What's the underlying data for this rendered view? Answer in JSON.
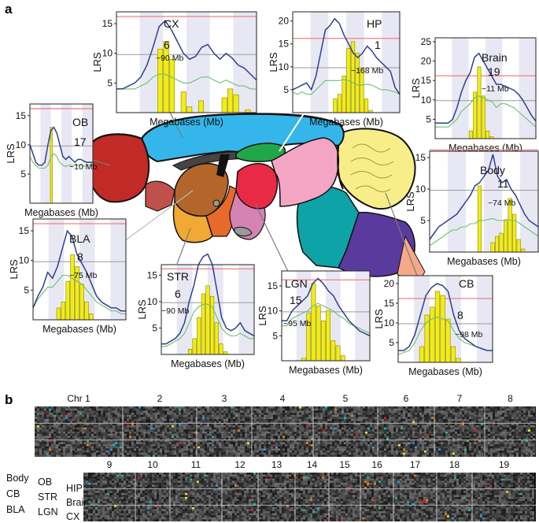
{
  "figure": {
    "panel_a_label": "a",
    "panel_b_label": "b",
    "xlabel": "Megabases (Mb)",
    "ylabel": "LRS",
    "sig_color": "#f08080",
    "sug_color": "#9a9a9a",
    "lrs_color": "#2e3f8f",
    "add_color": "#6cc06c",
    "hist_color": "#f2ec1a"
  },
  "chart_data": [
    {
      "type": "line",
      "name": "CX",
      "chr": "6",
      "peak": "~90 Mb",
      "yticks": [
        "5",
        "10",
        "15"
      ],
      "ylim": [
        0,
        17
      ],
      "sig": 16.2,
      "sug": 9.8,
      "lrs": [
        4,
        4,
        4.5,
        5,
        6,
        8,
        11,
        14.5,
        15.5,
        14,
        12,
        10,
        9,
        9.5,
        11,
        11.5,
        10,
        9,
        10,
        9.2,
        8,
        7.5,
        6.5,
        5.5
      ],
      "add": [
        4,
        4,
        4,
        4,
        4.5,
        5,
        6,
        6.5,
        6.5,
        6,
        5.5,
        5,
        5,
        5.5,
        6,
        6,
        5.5,
        5,
        5.5,
        5,
        4.5,
        4.5,
        4,
        4
      ],
      "hist": [
        0,
        0,
        0,
        0,
        0,
        0,
        0,
        10.7,
        12,
        9,
        0,
        3.5,
        1,
        0,
        2,
        0,
        0,
        0,
        2.5,
        4,
        3,
        0,
        0.5,
        0
      ]
    },
    {
      "type": "line",
      "name": "HP",
      "chr": "1",
      "peak": "~168 Mb",
      "yticks": [
        "5",
        "10",
        "15",
        "20"
      ],
      "ylim": [
        0,
        22
      ],
      "sig": 16.2,
      "sug": 9.8,
      "lrs": [
        5,
        5.5,
        6,
        6.5,
        5,
        8,
        13,
        18,
        19,
        20.5,
        19.5,
        17,
        15,
        13,
        12,
        13,
        14.5,
        13.5,
        12,
        11,
        10,
        9,
        5.5,
        4
      ],
      "add": [
        4.5,
        4,
        4.5,
        4,
        4,
        5,
        6,
        7,
        7,
        7,
        7,
        7.2,
        7,
        6.5,
        6,
        6,
        6.2,
        6,
        5.5,
        5,
        5,
        4.8,
        4.5,
        4
      ],
      "hist": [
        0,
        0,
        0,
        0,
        0,
        0,
        0,
        0,
        0,
        3,
        4,
        8,
        14,
        15.5,
        13,
        9.5,
        3,
        0.5,
        0,
        0,
        0,
        0,
        0,
        0
      ]
    },
    {
      "type": "line",
      "name": "Brain",
      "chr": "19",
      "peak": "~11 Mb",
      "yticks": [
        "5",
        "10",
        "15",
        "20",
        "25"
      ],
      "ylim": [
        0,
        26
      ],
      "sig": 16.2,
      "sug": 9.8,
      "lrs": [
        4,
        4,
        4,
        4,
        5,
        8,
        12,
        15,
        17,
        21,
        22,
        20,
        18,
        16,
        14,
        14,
        13.5,
        13,
        12.5,
        11.5,
        10,
        8,
        6,
        4.5
      ],
      "add": [
        3,
        3,
        3,
        3,
        4,
        5,
        7,
        8,
        9,
        10.5,
        11,
        10.5,
        10,
        9.5,
        8,
        9,
        9,
        8.5,
        8,
        7,
        6,
        5,
        4,
        3
      ],
      "hist": [
        0,
        0,
        0,
        0,
        0,
        0,
        0,
        0,
        2,
        12,
        18.5,
        11,
        2,
        0.5,
        0,
        0,
        0,
        0,
        0,
        0,
        0,
        0,
        0,
        0
      ]
    },
    {
      "type": "line",
      "name": "OB",
      "chr": "17",
      "peak": "~10 Mb",
      "yticks": [
        "5",
        "10",
        "15"
      ],
      "ylim": [
        0,
        17
      ],
      "sig": 16.2,
      "sug": 9.8,
      "lrs": [
        10,
        8.5,
        7,
        6.5,
        6.5,
        7,
        10,
        12.5,
        13,
        12,
        10,
        8,
        7.5,
        8,
        7.5,
        7,
        7.5,
        7.5,
        7.2,
        7,
        7,
        7
      ],
      "add": [
        8,
        7,
        6.5,
        6,
        6,
        6,
        6.5,
        8,
        8.5,
        8,
        7,
        6.5,
        6.3,
        6.5,
        6.5,
        6.5,
        6.5,
        6.5,
        6.3,
        6.5,
        6.5,
        6.5
      ],
      "hist": [
        0,
        0,
        0,
        0,
        0,
        0,
        0,
        13,
        0,
        0,
        0,
        0,
        0,
        0,
        0,
        0,
        0,
        0,
        0,
        0,
        0,
        0
      ]
    },
    {
      "type": "line",
      "name": "Body",
      "chr": "11",
      "peak": "~74 Mb",
      "yticks": [
        "5",
        "10",
        "15"
      ],
      "ylim": [
        0,
        16
      ],
      "sig": 16.2,
      "sug": 9.8,
      "lrs": [
        2,
        3,
        4,
        4.5,
        5,
        5.5,
        6,
        7,
        8,
        9,
        10.5,
        11,
        12,
        13,
        15.5,
        12,
        11,
        11.5,
        10,
        9,
        7.5,
        6,
        5,
        4.5,
        4
      ],
      "add": [
        1,
        1.5,
        2,
        2.5,
        3,
        3.5,
        3.5,
        4,
        4,
        4.5,
        4.5,
        5,
        5,
        5.2,
        5.3,
        5,
        5,
        5.2,
        5,
        5,
        4.5,
        4,
        3.5,
        3,
        2.5
      ],
      "hist": [
        0,
        0,
        0,
        0,
        0,
        0,
        0,
        0,
        0,
        0,
        0,
        10.5,
        0,
        0,
        1.5,
        2.5,
        3,
        5,
        8.5,
        6,
        2,
        0.5,
        0,
        0,
        0
      ]
    },
    {
      "type": "line",
      "name": "BLA",
      "chr": "8",
      "peak": "~75 Mb",
      "yticks": [
        "5",
        "10",
        "15"
      ],
      "ylim": [
        0,
        17
      ],
      "sig": 16.2,
      "sug": 9.8,
      "lrs": [
        2,
        4,
        5.5,
        8,
        7,
        9,
        12,
        15,
        14,
        11,
        9.5,
        8,
        6,
        4,
        3,
        2.5,
        2,
        2,
        1.5,
        1.5
      ],
      "add": [
        2,
        3.5,
        4.5,
        5.5,
        5.5,
        6.5,
        7.5,
        7.5,
        7,
        6.5,
        6,
        5,
        4,
        3,
        2.5,
        2,
        1.5,
        1.5,
        1,
        1
      ],
      "hist": [
        0,
        0,
        0,
        0,
        0,
        2,
        3,
        6.5,
        11,
        9,
        6,
        3,
        1,
        0,
        0,
        0,
        0,
        0,
        0,
        0
      ]
    },
    {
      "type": "line",
      "name": "STR",
      "chr": "6",
      "peak": "~90 Mb",
      "yticks": [
        "5",
        "10",
        "15"
      ],
      "ylim": [
        0,
        17
      ],
      "sig": 16.2,
      "sug": 9.8,
      "lrs": [
        2,
        2,
        2.5,
        3,
        4,
        6,
        10,
        13,
        17,
        18.5,
        19,
        17,
        12,
        7,
        5,
        4.5,
        5,
        6,
        4.5,
        4,
        3.5
      ],
      "add": [
        1.5,
        1.5,
        2,
        2.5,
        3,
        4,
        6,
        8,
        9,
        9.5,
        9.5,
        9,
        7,
        5,
        4,
        3.5,
        3.5,
        4,
        3.5,
        3,
        3
      ],
      "hist": [
        0,
        0,
        0,
        0,
        0,
        0,
        1,
        3,
        7,
        11.5,
        13,
        11,
        6,
        2,
        0.5,
        0,
        0,
        0,
        0,
        0,
        0
      ]
    },
    {
      "type": "line",
      "name": "LGN",
      "chr": "15",
      "peak": "~95 Mb",
      "yticks": [
        "5",
        "10",
        "15"
      ],
      "ylim": [
        0,
        18
      ],
      "sig": 16.2,
      "sug": 9.8,
      "lrs": [
        8,
        8,
        10,
        11,
        12,
        13,
        15.5,
        16.5,
        15.5,
        14,
        13,
        11,
        9.5,
        8,
        7,
        6,
        5.5,
        5
      ],
      "add": [
        7,
        7,
        8.5,
        9,
        9.5,
        10,
        11,
        11.5,
        11,
        10.5,
        10,
        9,
        8.5,
        7.5,
        7,
        6.5,
        6,
        5.5
      ],
      "hist": [
        0,
        0,
        0,
        0,
        0.5,
        9.5,
        15.5,
        11,
        8,
        10,
        4,
        3,
        1,
        0,
        0,
        0,
        0,
        0
      ]
    },
    {
      "type": "line",
      "name": "CB",
      "chr": "8",
      "peak": "~98 Mb",
      "yticks": [
        "5",
        "10",
        "15",
        "20"
      ],
      "ylim": [
        0,
        22
      ],
      "sig": 16.2,
      "sug": 9.8,
      "lrs": [
        3,
        3,
        4,
        7,
        12,
        17,
        19,
        20,
        19.5,
        18,
        12,
        8,
        6,
        5,
        4,
        3.5,
        3,
        3
      ],
      "add": [
        2,
        2.5,
        3,
        5,
        8,
        10,
        11,
        11.5,
        11,
        10.5,
        8,
        6,
        5,
        4.5,
        4,
        3.5,
        3,
        3
      ],
      "hist": [
        0,
        0,
        0,
        0,
        4,
        12,
        14,
        18,
        17,
        11,
        4,
        1,
        0,
        0,
        0,
        0,
        0,
        0
      ]
    }
  ],
  "panel_b": {
    "top_row_chr": [
      "Chr 1",
      "2",
      "3",
      "4",
      "5",
      "6",
      "7",
      "8"
    ],
    "bottom_row_chr": [
      "9",
      "10",
      "11",
      "12",
      "13",
      "14",
      "15",
      "16",
      "17",
      "18",
      "19"
    ],
    "left_outer": [
      "Body",
      "CB",
      "BLA"
    ],
    "left_inner_top": [
      "OB",
      "STR",
      "LGN"
    ],
    "left_inner_bottom": [
      "HIP",
      "Brain",
      "CX"
    ]
  }
}
